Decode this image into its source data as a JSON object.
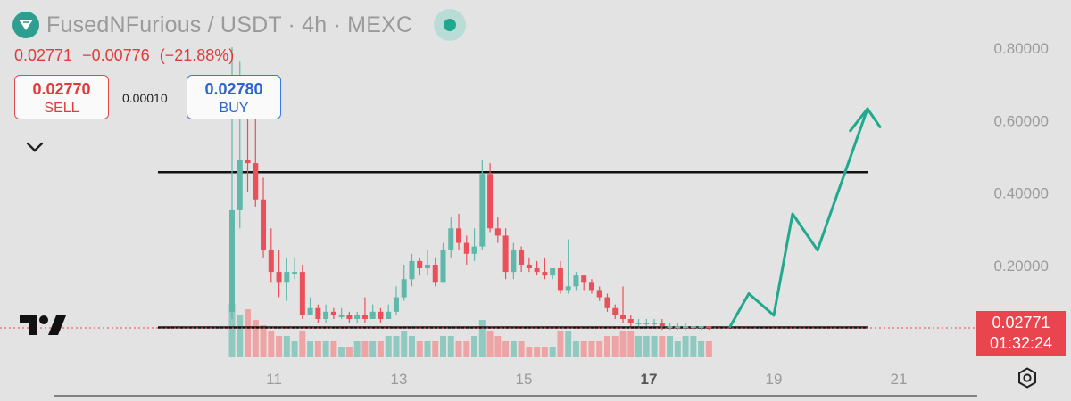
{
  "header": {
    "title": "FusedNFurious / USDT · 4h · MEXC",
    "ohlc": {
      "last": "0.02771",
      "change": "−0.00776",
      "change_pct": "(−21.88%)"
    }
  },
  "trade": {
    "sell": {
      "price": "0.02770",
      "label": "SELL"
    },
    "spread": "0.00010",
    "buy": {
      "price": "0.02780",
      "label": "BUY"
    }
  },
  "price_tag": {
    "price": "0.02771",
    "countdown": "01:32:24"
  },
  "icons": {
    "logo": "token-logo-icon",
    "live": "live-status-icon",
    "collapse": "chevron-down-icon",
    "brand": "tradingview-logo-icon",
    "settings": "settings-icon"
  },
  "colors": {
    "up": "#5fb8a9",
    "down": "#ea4f5a",
    "bg": "#e3e3e3",
    "annotation": "#20a98c"
  },
  "chart_data": {
    "type": "candlestick",
    "y_ticks": [
      "0.80000",
      "0.60000",
      "0.40000",
      "0.20000"
    ],
    "y_tick_values": [
      0.8,
      0.6,
      0.4,
      0.2
    ],
    "x_ticks": [
      {
        "label": "11",
        "day": 11
      },
      {
        "label": "13",
        "day": 13
      },
      {
        "label": "15",
        "day": 15
      },
      {
        "label": "17",
        "day": 17,
        "bold": true
      },
      {
        "label": "19",
        "day": 19
      },
      {
        "label": "21",
        "day": 21
      }
    ],
    "resistance": 0.455,
    "support": 0.029,
    "candles": [
      [
        0.07,
        0.35,
        0.8,
        0.05,
        10
      ],
      [
        0.35,
        0.49,
        0.76,
        0.3,
        8
      ],
      [
        0.49,
        0.48,
        0.65,
        0.4,
        9
      ],
      [
        0.48,
        0.38,
        0.62,
        0.36,
        7
      ],
      [
        0.38,
        0.24,
        0.44,
        0.22,
        6
      ],
      [
        0.24,
        0.18,
        0.3,
        0.15,
        5
      ],
      [
        0.18,
        0.15,
        0.24,
        0.11,
        4
      ],
      [
        0.15,
        0.18,
        0.22,
        0.1,
        4
      ],
      [
        0.18,
        0.18,
        0.22,
        0.16,
        3
      ],
      [
        0.18,
        0.06,
        0.2,
        0.05,
        5
      ],
      [
        0.06,
        0.08,
        0.11,
        0.06,
        3
      ],
      [
        0.08,
        0.05,
        0.09,
        0.04,
        3
      ],
      [
        0.05,
        0.07,
        0.09,
        0.04,
        3
      ],
      [
        0.07,
        0.06,
        0.08,
        0.05,
        3
      ],
      [
        0.06,
        0.06,
        0.08,
        0.05,
        2
      ],
      [
        0.06,
        0.05,
        0.07,
        0.04,
        2
      ],
      [
        0.05,
        0.06,
        0.07,
        0.04,
        3
      ],
      [
        0.06,
        0.05,
        0.11,
        0.04,
        3
      ],
      [
        0.05,
        0.07,
        0.09,
        0.05,
        3
      ],
      [
        0.07,
        0.05,
        0.08,
        0.04,
        3
      ],
      [
        0.05,
        0.07,
        0.09,
        0.05,
        4
      ],
      [
        0.07,
        0.11,
        0.14,
        0.06,
        4
      ],
      [
        0.11,
        0.16,
        0.2,
        0.1,
        5
      ],
      [
        0.16,
        0.21,
        0.23,
        0.14,
        4
      ],
      [
        0.21,
        0.19,
        0.22,
        0.17,
        3
      ],
      [
        0.19,
        0.2,
        0.24,
        0.17,
        3
      ],
      [
        0.2,
        0.15,
        0.22,
        0.14,
        3
      ],
      [
        0.15,
        0.24,
        0.26,
        0.15,
        4
      ],
      [
        0.24,
        0.3,
        0.33,
        0.22,
        4
      ],
      [
        0.3,
        0.26,
        0.34,
        0.24,
        3
      ],
      [
        0.26,
        0.23,
        0.28,
        0.2,
        3
      ],
      [
        0.23,
        0.25,
        0.3,
        0.21,
        4
      ],
      [
        0.25,
        0.45,
        0.49,
        0.24,
        7
      ],
      [
        0.45,
        0.3,
        0.48,
        0.29,
        5
      ],
      [
        0.3,
        0.28,
        0.33,
        0.26,
        4
      ],
      [
        0.28,
        0.18,
        0.3,
        0.16,
        3
      ],
      [
        0.18,
        0.24,
        0.26,
        0.16,
        3
      ],
      [
        0.24,
        0.2,
        0.25,
        0.18,
        3
      ],
      [
        0.2,
        0.19,
        0.22,
        0.18,
        2
      ],
      [
        0.19,
        0.18,
        0.21,
        0.17,
        2
      ],
      [
        0.18,
        0.17,
        0.22,
        0.16,
        2
      ],
      [
        0.17,
        0.19,
        0.19,
        0.16,
        2
      ],
      [
        0.19,
        0.13,
        0.21,
        0.12,
        5
      ],
      [
        0.13,
        0.14,
        0.27,
        0.12,
        5
      ],
      [
        0.14,
        0.17,
        0.18,
        0.13,
        3
      ],
      [
        0.17,
        0.15,
        0.17,
        0.13,
        3
      ],
      [
        0.15,
        0.13,
        0.16,
        0.12,
        3
      ],
      [
        0.13,
        0.11,
        0.14,
        0.1,
        3
      ],
      [
        0.11,
        0.08,
        0.12,
        0.07,
        4
      ],
      [
        0.08,
        0.06,
        0.09,
        0.05,
        4
      ],
      [
        0.06,
        0.05,
        0.14,
        0.04,
        5
      ],
      [
        0.05,
        0.04,
        0.06,
        0.03,
        5
      ],
      [
        0.04,
        0.04,
        0.05,
        0.03,
        4
      ],
      [
        0.04,
        0.04,
        0.05,
        0.03,
        4
      ],
      [
        0.04,
        0.04,
        0.05,
        0.03,
        4
      ],
      [
        0.04,
        0.03,
        0.05,
        0.02,
        4
      ],
      [
        0.03,
        0.03,
        0.04,
        0.02,
        4
      ],
      [
        0.03,
        0.03,
        0.04,
        0.02,
        3
      ],
      [
        0.03,
        0.03,
        0.04,
        0.02,
        4
      ],
      [
        0.03,
        0.03,
        0.03,
        0.02,
        4
      ],
      [
        0.03,
        0.03,
        0.03,
        0.02,
        3
      ],
      [
        0.03,
        0.028,
        0.03,
        0.02,
        3
      ]
    ],
    "projection": [
      [
        18.3,
        0.029
      ],
      [
        18.6,
        0.12
      ],
      [
        19.0,
        0.06
      ],
      [
        19.3,
        0.34
      ],
      [
        19.7,
        0.24
      ],
      [
        20.5,
        0.63
      ],
      [
        20.7,
        0.58
      ]
    ]
  }
}
